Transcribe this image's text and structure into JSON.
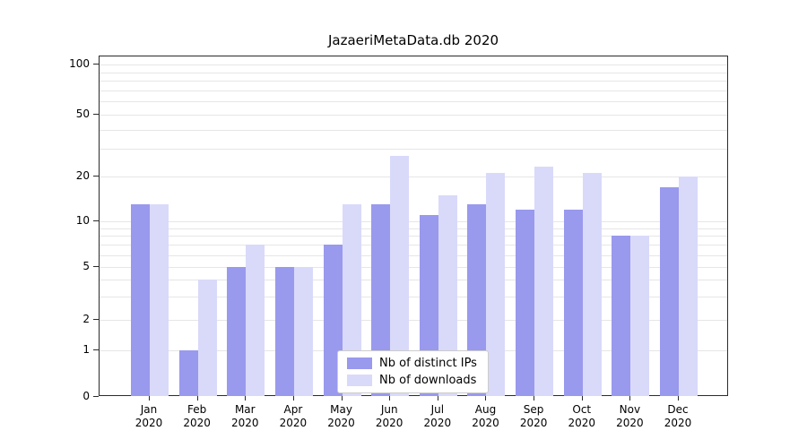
{
  "chart_data": {
    "type": "bar",
    "title": "JazaeriMetaData.db 2020",
    "categories": [
      "Jan 2020",
      "Feb 2020",
      "Mar 2020",
      "Apr 2020",
      "May 2020",
      "Jun 2020",
      "Jul 2020",
      "Aug 2020",
      "Sep 2020",
      "Oct 2020",
      "Nov 2020",
      "Dec 2020"
    ],
    "series": [
      {
        "name": "Nb of distinct IPs",
        "color": "#9999ee",
        "values": [
          13,
          1,
          5,
          5,
          7,
          13,
          11,
          13,
          12,
          12,
          8,
          17
        ]
      },
      {
        "name": "Nb of downloads",
        "color": "#d9d9fa",
        "values": [
          13,
          4,
          7,
          5,
          13,
          27,
          15,
          21,
          23,
          21,
          8,
          20
        ]
      }
    ],
    "yscale": "symlog",
    "ylim": [
      0,
      100
    ],
    "yticks": [
      100,
      50,
      20,
      10,
      5,
      2,
      1,
      0
    ],
    "gridlines": [
      1,
      2,
      3,
      4,
      5,
      6,
      7,
      8,
      9,
      10,
      20,
      30,
      40,
      50,
      60,
      70,
      80,
      90,
      100
    ],
    "legend_position": "lower center",
    "grid": true
  }
}
